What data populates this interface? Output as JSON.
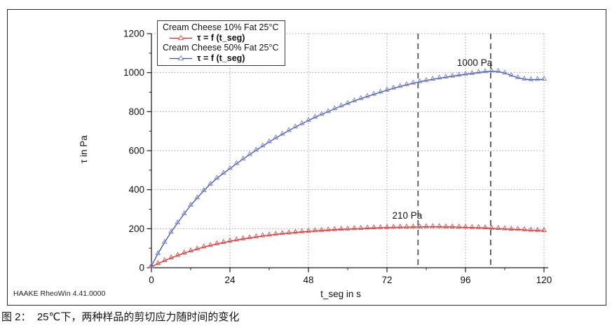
{
  "figure": {
    "watermark": "HAAKE RheoWin 4.41.0000",
    "caption": "图 2：  25℃下，两种样品的剪切应力随时间的变化"
  },
  "chart_data": {
    "type": "line",
    "title": "",
    "xlabel": "t_seg in s",
    "ylabel": "τ in Pa",
    "xlim": [
      0,
      120
    ],
    "ylim": [
      0,
      1200
    ],
    "x_major_ticks": [
      0,
      24,
      48,
      72,
      96,
      120
    ],
    "x_minor_tick_step": 12,
    "y_major_ticks": [
      0,
      200,
      400,
      600,
      800,
      1000,
      1200
    ],
    "y_minor_tick_step": 100,
    "grid": "dotted-at-major-ticks",
    "legend_position": "top-left",
    "cursor_lines_x": [
      81.5,
      103.7
    ],
    "cursor_color": "#565656",
    "axis_color": "#1f1f1f",
    "grid_color": "#9a9a9a",
    "annotations": [
      {
        "text": "1000 Pa",
        "x": 98.8,
        "y": 1035
      },
      {
        "text": "210 Pa",
        "x": 78.2,
        "y": 251
      }
    ],
    "x": [
      0,
      2,
      4,
      6,
      8,
      10,
      12,
      14,
      16,
      18,
      20,
      22,
      24,
      26,
      28,
      30,
      32,
      34,
      36,
      38,
      40,
      42,
      44,
      46,
      48,
      50,
      52,
      54,
      56,
      58,
      60,
      62,
      64,
      66,
      68,
      70,
      72,
      74,
      76,
      78,
      80,
      82,
      84,
      86,
      88,
      90,
      92,
      94,
      96,
      98,
      100,
      102,
      104,
      106,
      108,
      110,
      112,
      114,
      116,
      118,
      120
    ],
    "series": [
      {
        "name": "Cream Cheese 10% Fat 25°C",
        "label": "τ = f (t_seg)",
        "color": "#cc2b2b",
        "marker_color": "#dd5a5a",
        "marker": "triangle-open-up",
        "peak_annotation": "210 Pa",
        "y": [
          5,
          21,
          36,
          50,
          63,
          75,
          86,
          96,
          106,
          114,
          122,
          129,
          136,
          142,
          148,
          153,
          158,
          163,
          167,
          171,
          175,
          178,
          181,
          184,
          186,
          189,
          191,
          193,
          195,
          197,
          198,
          200,
          201,
          203,
          204,
          205,
          206,
          207,
          208,
          208,
          209,
          209,
          210,
          210,
          210,
          209,
          209,
          208,
          207,
          206,
          205,
          204,
          202,
          201,
          199,
          197,
          196,
          194,
          192,
          191,
          190
        ]
      },
      {
        "name": "Cream Cheese 50% Fat 25°C",
        "label": "τ = f (t_seg)",
        "color": "#3f4ea5",
        "marker_color": "#8089cd",
        "marker": "triangle-open-up",
        "peak_annotation": "1000 Pa",
        "y": [
          10,
          72,
          130,
          182,
          230,
          276,
          320,
          358,
          395,
          428,
          458,
          484,
          508,
          533,
          557,
          580,
          602,
          624,
          645,
          665,
          684,
          703,
          721,
          738,
          755,
          771,
          786,
          800,
          815,
          829,
          842,
          855,
          867,
          878,
          889,
          900,
          910,
          920,
          929,
          938,
          946,
          953,
          960,
          966,
          972,
          977,
          982,
          987,
          992,
          996,
          1001,
          1005,
          1008,
          1006,
          998,
          986,
          974,
          967,
          964,
          965,
          966
        ]
      }
    ]
  }
}
